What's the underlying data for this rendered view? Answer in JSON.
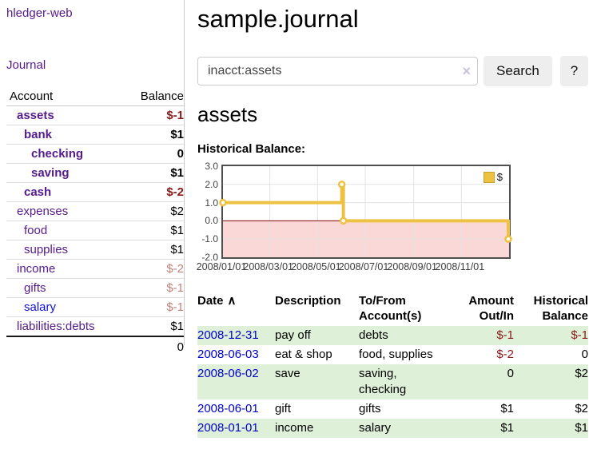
{
  "colors": {
    "accent_purple": "#551a8b",
    "unvisited_link_blue": "#1111dd",
    "date_link_blue": "#0000cc",
    "negative_red": "#8b1a1a",
    "negative_dim_rose": "#c4807e",
    "row_highlight_green": "#dff0d8",
    "chart_line_yellow": "#edc240",
    "chart_negative_fill": "#fbd8d8",
    "chart_zero_line": "#800000"
  },
  "brand": "hledger-web",
  "nav": {
    "journal_label": "Journal"
  },
  "sidebar": {
    "headers": {
      "account": "Account",
      "balance": "Balance"
    },
    "rows": [
      {
        "account": "assets",
        "balance": "$-1",
        "depth": 1,
        "bold": true,
        "neg": "strong"
      },
      {
        "account": "bank",
        "balance": "$1",
        "depth": 2,
        "bold": true
      },
      {
        "account": "checking",
        "balance": "0",
        "depth": 3,
        "bold": true
      },
      {
        "account": "saving",
        "balance": "$1",
        "depth": 3,
        "bold": true
      },
      {
        "account": "cash",
        "balance": "$-2",
        "depth": 2,
        "bold": true,
        "neg": "strong"
      },
      {
        "account": "expenses",
        "balance": "$2",
        "depth": 1
      },
      {
        "account": "food",
        "balance": "$1",
        "depth": 2
      },
      {
        "account": "supplies",
        "balance": "$1",
        "depth": 2
      },
      {
        "account": "income",
        "balance": "$-2",
        "depth": 1,
        "neg": "dim"
      },
      {
        "account": "gifts",
        "balance": "$-1",
        "depth": 2,
        "neg": "dim"
      },
      {
        "account": "salary",
        "balance": "$-1",
        "depth": 2,
        "neg": "dim",
        "link": "blue"
      },
      {
        "account": "liabilities:debts",
        "balance": "$1",
        "depth": 1
      }
    ],
    "total": "0"
  },
  "main": {
    "title": "sample.journal",
    "search": {
      "value": "inacct:assets",
      "clear_icon": "×",
      "button_label": "Search",
      "help_label": "?"
    },
    "account_title": "assets",
    "chart_heading": "Historical Balance:"
  },
  "chart_data": {
    "type": "line",
    "step": true,
    "title": "Historical Balance",
    "legend": [
      {
        "label": "$",
        "color": "#edc240"
      }
    ],
    "legend_position": "top-right",
    "series": [
      {
        "name": "$",
        "color": "#edc240",
        "points": [
          {
            "date": "2008/01/01",
            "value": 1.0
          },
          {
            "date": "2008/06/01",
            "value": 2.0
          },
          {
            "date": "2008/06/03",
            "value": 0.0
          },
          {
            "date": "2008/12/31",
            "value": -1.0
          }
        ]
      }
    ],
    "xlim": [
      "2008/01/01",
      "2009/01/01"
    ],
    "ylim": [
      -2.0,
      3.0
    ],
    "ytick_labels": [
      "3.0",
      "2.0",
      "1.0",
      "0.0",
      "-1.0",
      "-2.0"
    ],
    "yticks": [
      3.0,
      2.0,
      1.0,
      0.0,
      -1.0,
      -2.0
    ],
    "xticks": [
      "2008/01/01",
      "2008/03/01",
      "2008/05/01",
      "2008/07/01",
      "2008/09/01",
      "2008/11/01"
    ],
    "grid": true,
    "negative_region_shaded": true
  },
  "register": {
    "columns": [
      {
        "label": "Date",
        "sort_icon": "∧"
      },
      {
        "label": "Description"
      },
      {
        "label": "To/From\nAccount(s)"
      },
      {
        "label": "Amount\nOut/In",
        "align": "right"
      },
      {
        "label": "Historical\nBalance",
        "align": "right"
      }
    ],
    "rows": [
      {
        "date": "2008-12-31",
        "description": "pay off",
        "accounts": "debts",
        "amount": "$-1",
        "balance": "$-1",
        "amount_neg": true,
        "balance_neg": true,
        "highlight": true
      },
      {
        "date": "2008-06-03",
        "description": "eat & shop",
        "accounts": "food, supplies",
        "amount": "$-2",
        "balance": "0",
        "amount_neg": true,
        "highlight": false
      },
      {
        "date": "2008-06-02",
        "description": "save",
        "accounts": "saving,\nchecking",
        "amount": "0",
        "balance": "$2",
        "highlight": true
      },
      {
        "date": "2008-06-01",
        "description": "gift",
        "accounts": "gifts",
        "amount": "$1",
        "balance": "$2",
        "highlight": false
      },
      {
        "date": "2008-01-01",
        "description": "income",
        "accounts": "salary",
        "amount": "$1",
        "balance": "$1",
        "highlight": true
      }
    ]
  }
}
